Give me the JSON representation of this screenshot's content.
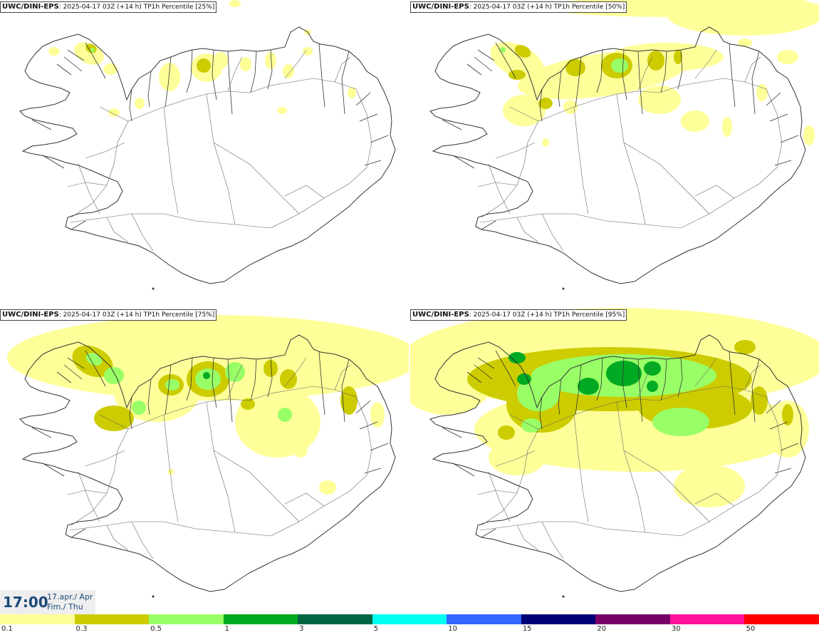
{
  "panels": [
    {
      "source": "UWC/DINI-EPS",
      "info": ": 2025-04-17 03Z (+14 h) TP1h Percentile [25%]",
      "level": 0
    },
    {
      "source": "UWC/DINI-EPS",
      "info": ": 2025-04-17 03Z (+14 h) TP1h Percentile [50%]",
      "level": 1
    },
    {
      "source": "UWC/DINI-EPS",
      "info": ": 2025-04-17 03Z (+14 h) TP1h Percentile [75%]",
      "level": 2
    },
    {
      "source": "UWC/DINI-EPS",
      "info": ": 2025-04-17 03Z (+14 h) TP1h Percentile [95%]",
      "level": 3
    }
  ],
  "timebox": {
    "time": "17:00",
    "date_line1": "17.apr./ Apr",
    "date_line2": "Fim./ Thu"
  },
  "legend": {
    "colors": [
      "#ffff99",
      "#cccc00",
      "#99ff66",
      "#00aa22",
      "#006644",
      "#00ffee",
      "#3366ff",
      "#000077",
      "#770066",
      "#ff1199",
      "#ff0000"
    ],
    "ticks": [
      "0.1",
      "0.3",
      "0.5",
      "1",
      "3",
      "5",
      "10",
      "15",
      "20",
      "30",
      "50"
    ]
  }
}
